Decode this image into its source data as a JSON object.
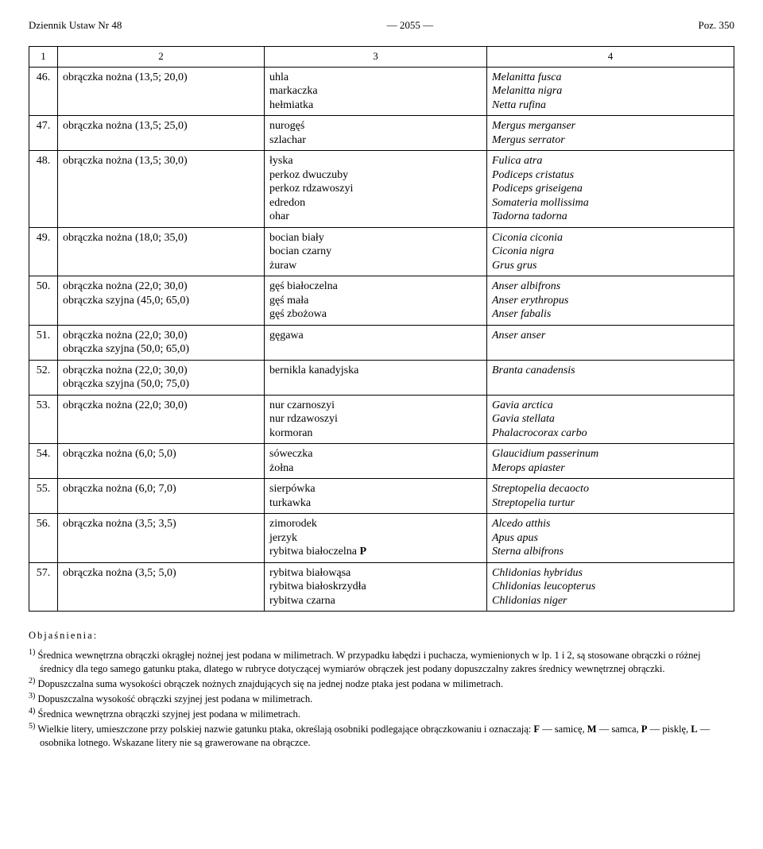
{
  "header": {
    "left": "Dziennik Ustaw Nr 48",
    "center": "— 2055 —",
    "right": "Poz. 350"
  },
  "colnums": {
    "c1": "1",
    "c2": "2",
    "c3": "3",
    "c4": "4"
  },
  "rows": [
    {
      "num": "46.",
      "ring": "obrączka nożna (13,5; 20,0)",
      "pl": [
        "uhla",
        "markaczka",
        "hełmiatka"
      ],
      "lat": [
        "Melanitta fusca",
        "Melanitta nigra",
        "Netta rufina"
      ]
    },
    {
      "num": "47.",
      "ring": "obrączka nożna (13,5; 25,0)",
      "pl": [
        "nurogęś",
        "szlachar"
      ],
      "lat": [
        "Mergus merganser",
        "Mergus serrator"
      ]
    },
    {
      "num": "48.",
      "ring": "obrączka nożna (13,5; 30,0)",
      "pl": [
        "łyska",
        "perkoz dwuczuby",
        "perkoz rdzawoszyi",
        "edredon",
        "ohar"
      ],
      "lat": [
        "Fulica atra",
        "Podiceps cristatus",
        "Podiceps griseigena",
        "Somateria mollissima",
        "Tadorna tadorna"
      ]
    },
    {
      "num": "49.",
      "ring": "obrączka nożna (18,0; 35,0)",
      "pl": [
        "bocian biały",
        "bocian czarny",
        "żuraw"
      ],
      "lat": [
        "Ciconia ciconia",
        "Ciconia nigra",
        "Grus grus"
      ]
    },
    {
      "num": "50.",
      "ring": "obrączka nożna (22,0; 30,0)\nobrączka szyjna (45,0; 65,0)",
      "pl": [
        "gęś białoczelna",
        "gęś mała",
        "gęś zbożowa"
      ],
      "lat": [
        "Anser albifrons",
        "Anser erythropus",
        "Anser fabalis"
      ]
    },
    {
      "num": "51.",
      "ring": "obrączka nożna (22,0; 30,0)\nobrączka szyjna (50,0; 65,0)",
      "pl": [
        "gęgawa"
      ],
      "lat": [
        "Anser anser"
      ]
    },
    {
      "num": "52.",
      "ring": "obrączka nożna (22,0; 30,0)\nobrączka szyjna (50,0; 75,0)",
      "pl": [
        "bernikla kanadyjska"
      ],
      "lat": [
        "Branta canadensis"
      ]
    },
    {
      "num": "53.",
      "ring": "obrączka nożna (22,0; 30,0)",
      "pl": [
        "nur czarnoszyi",
        "nur rdzawoszyi",
        "kormoran"
      ],
      "lat": [
        "Gavia arctica",
        "Gavia stellata",
        "Phalacrocorax carbo"
      ]
    },
    {
      "num": "54.",
      "ring": "obrączka nożna (6,0; 5,0)",
      "pl": [
        "sóweczka",
        "żołna"
      ],
      "lat": [
        "Glaucidium passerinum",
        "Merops apiaster"
      ]
    },
    {
      "num": "55.",
      "ring": "obrączka nożna (6,0; 7,0)",
      "pl": [
        "sierpówka",
        "turkawka"
      ],
      "lat": [
        "Streptopelia decaocto",
        "Streptopelia turtur"
      ]
    },
    {
      "num": "56.",
      "ring": "obrączka nożna (3,5; 3,5)",
      "pl": [
        "zimorodek",
        "jerzyk",
        "rybitwa białoczelna P"
      ],
      "lat": [
        "Alcedo atthis",
        "Apus apus",
        "Sterna albifrons"
      ],
      "boldIdx": [
        2
      ]
    },
    {
      "num": "57.",
      "ring": "obrączka nożna (3,5; 5,0)",
      "pl": [
        "rybitwa białowąsa",
        "rybitwa białoskrzydła",
        "rybitwa czarna"
      ],
      "lat": [
        "Chlidonias hybridus",
        "Chlidonias leucopterus",
        "Chlidonias niger"
      ]
    }
  ],
  "notes": {
    "lead": "Objaśnienia:",
    "items": [
      "Średnica wewnętrzna obrączki okrągłej nożnej jest podana w milimetrach. W przypadku łabędzi i puchacza, wymienionych w lp. 1 i 2, są stosowane obrączki o różnej średnicy dla tego samego gatunku ptaka, dlatego w rubryce dotyczącej wymiarów obrączek jest podany dopuszczalny zakres średnicy wewnętrznej obrączki.",
      "Dopuszczalna suma wysokości obrączek nożnych znajdujących się na jednej nodze ptaka jest podana w milimetrach.",
      "Dopuszczalna wysokość obrączki szyjnej jest podana w milimetrach.",
      "Średnica wewnętrzna obrączki szyjnej jest podana w milimetrach.",
      "Wielkie litery, umieszczone przy polskiej nazwie gatunku ptaka, określają osobniki podlegające obrączkowaniu i oznaczają: F — samicę, M — samca, P — pisklę, L — osobnika lotnego. Wskazane litery nie są grawerowane na obrączce."
    ]
  }
}
